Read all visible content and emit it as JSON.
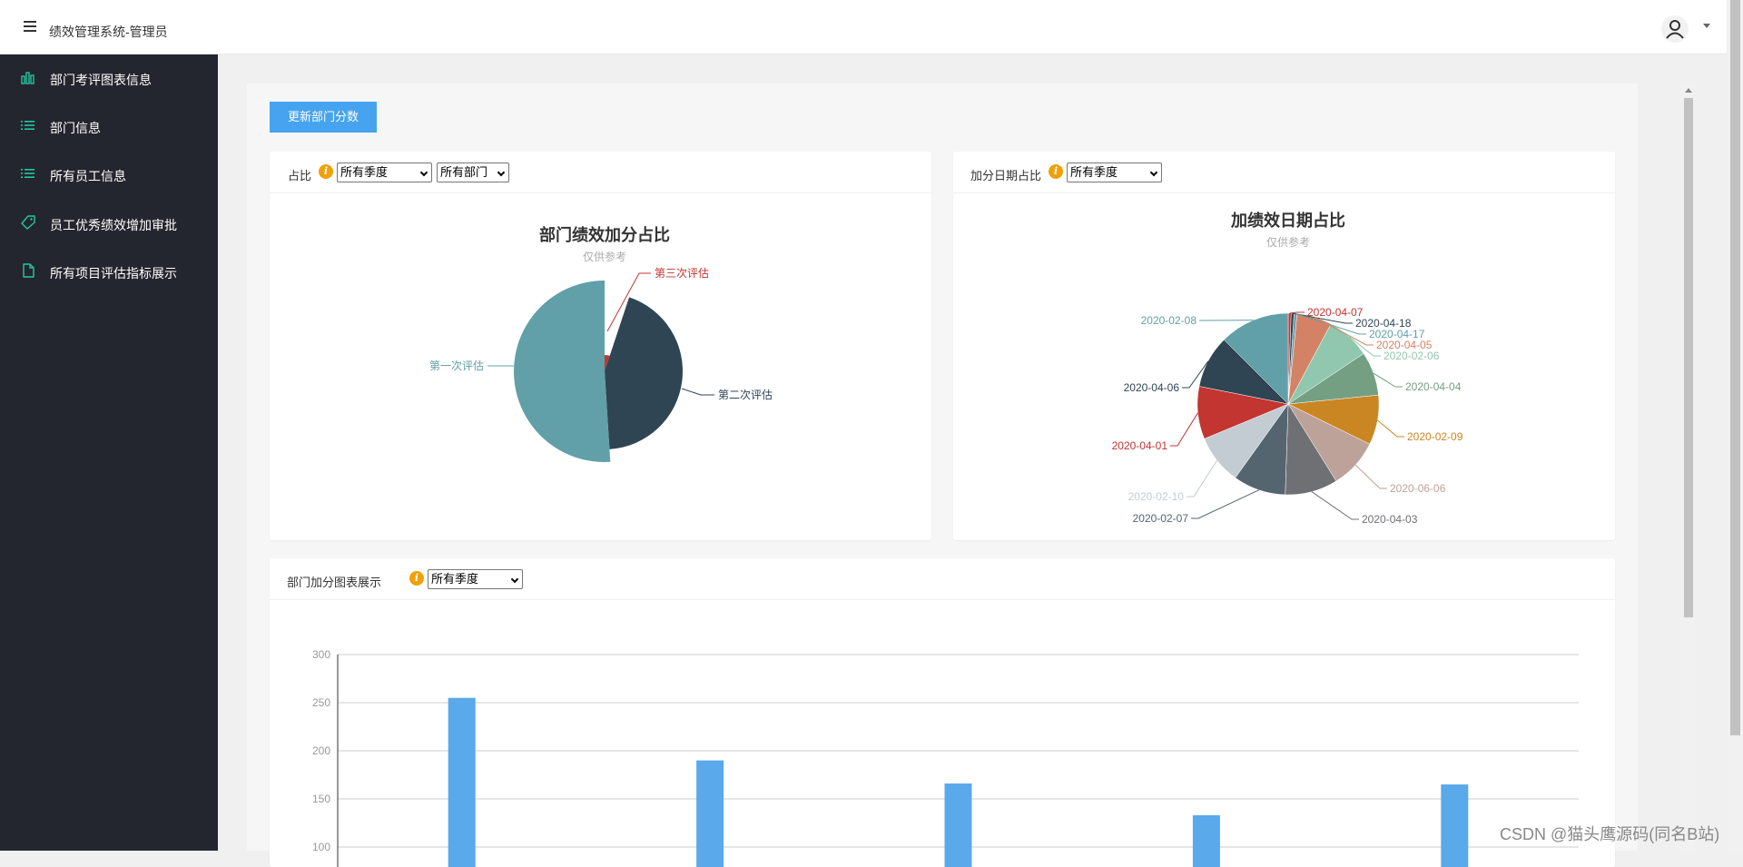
{
  "header": {
    "title": "绩效管理系统-管理员",
    "menu_icon": "hamburger-icon",
    "user_icon": "user-icon"
  },
  "sidebar": {
    "items": [
      {
        "label": "部门考评图表信息",
        "icon": "bar-chart-icon"
      },
      {
        "label": "部门信息",
        "icon": "list-icon"
      },
      {
        "label": "所有员工信息",
        "icon": "list-icon"
      },
      {
        "label": "员工优秀绩效增加审批",
        "icon": "tag-icon"
      },
      {
        "label": "所有项目评估指标展示",
        "icon": "file-icon"
      }
    ],
    "icon_color": "#26c6a2"
  },
  "toolbar": {
    "update_label": "更新部门分数"
  },
  "card1": {
    "title": "占比",
    "selects": [
      "所有季度",
      "所有部门"
    ],
    "chart_data": {
      "type": "pie",
      "rose": true,
      "title": "部门绩效加分占比",
      "subtitle": "仅供参考",
      "slices": [
        {
          "name": "第一次评估",
          "value": 50.1,
          "color": "#61a0a8"
        },
        {
          "name": "第二次评估",
          "value": 42.2,
          "color": "#2f4554"
        },
        {
          "name": "第三次评估",
          "value": 1.8,
          "color": "#c23531"
        }
      ]
    }
  },
  "card2": {
    "title": "加分日期占比",
    "selects": [
      "所有季度"
    ],
    "chart_data": {
      "type": "pie",
      "title": "加绩效日期占比",
      "subtitle": "仅供参考",
      "slices": [
        {
          "name": "2020-04-07",
          "value": 0.5,
          "color": "#c23531"
        },
        {
          "name": "2020-04-18",
          "value": 0.5,
          "color": "#2f4554"
        },
        {
          "name": "2020-04-17",
          "value": 0.5,
          "color": "#61a0a8"
        },
        {
          "name": "2020-04-05",
          "value": 6.0,
          "color": "#d48265"
        },
        {
          "name": "2020-02-06",
          "value": 7.5,
          "color": "#91c7ae"
        },
        {
          "name": "2020-04-04",
          "value": 7.5,
          "color": "#749f83"
        },
        {
          "name": "2020-02-09",
          "value": 8.5,
          "color": "#ca8622"
        },
        {
          "name": "2020-06-06",
          "value": 8.5,
          "color": "#bda29a"
        },
        {
          "name": "2020-04-03",
          "value": 9.0,
          "color": "#6e7074"
        },
        {
          "name": "2020-02-07",
          "value": 9.0,
          "color": "#546570"
        },
        {
          "name": "2020-02-10",
          "value": 8.5,
          "color": "#c4ccd3"
        },
        {
          "name": "2020-04-01",
          "value": 9.0,
          "color": "#c23531"
        },
        {
          "name": "2020-04-06",
          "value": 9.0,
          "color": "#2f4554"
        },
        {
          "name": "2020-02-08",
          "value": 12.0,
          "color": "#61a0a8"
        }
      ]
    }
  },
  "card3": {
    "title": "部门加分图表展示",
    "selects": [
      "所有季度"
    ],
    "chart_data": {
      "type": "bar",
      "values": [
        255,
        190,
        166,
        133,
        165
      ],
      "color": "#5aa9ea",
      "yticks": [
        300,
        250,
        200,
        150,
        100
      ],
      "ylim": [
        0,
        300
      ]
    }
  },
  "watermark": "CSDN @猫头鹰源码(同名B站)"
}
